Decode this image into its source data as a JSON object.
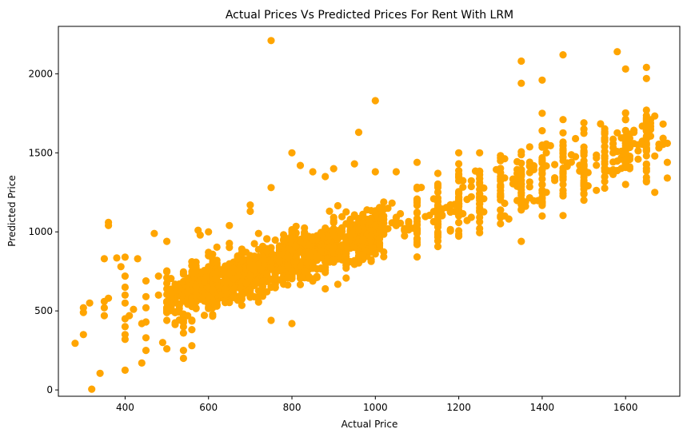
{
  "chart_data": {
    "type": "scatter",
    "title": "Actual Prices Vs Predicted Prices For Rent With LRM",
    "xlabel": "Actual Price",
    "ylabel": "Predicted Price",
    "xlim": [
      240,
      1730
    ],
    "ylim": [
      -40,
      2300
    ],
    "xticks": [
      400,
      600,
      800,
      1000,
      1200,
      1400,
      1600
    ],
    "yticks": [
      0,
      500,
      1000,
      1500,
      2000
    ],
    "grid": false,
    "legend": "none",
    "marker_color": "#FFA500",
    "series": [
      {
        "points": [
          [
            280,
            295
          ],
          [
            300,
            350
          ],
          [
            300,
            490
          ],
          [
            300,
            520
          ],
          [
            315,
            550
          ],
          [
            320,
            5
          ],
          [
            340,
            105
          ],
          [
            350,
            470
          ],
          [
            350,
            520
          ],
          [
            350,
            560
          ],
          [
            350,
            830
          ],
          [
            360,
            580
          ],
          [
            360,
            1040
          ],
          [
            360,
            1060
          ],
          [
            380,
            835
          ],
          [
            390,
            780
          ],
          [
            400,
            125
          ],
          [
            400,
            320
          ],
          [
            400,
            350
          ],
          [
            400,
            400
          ],
          [
            400,
            450
          ],
          [
            400,
            550
          ],
          [
            400,
            600
          ],
          [
            400,
            650
          ],
          [
            400,
            720
          ],
          [
            400,
            840
          ],
          [
            410,
            470
          ],
          [
            420,
            510
          ],
          [
            430,
            830
          ],
          [
            440,
            170
          ],
          [
            440,
            420
          ],
          [
            450,
            250
          ],
          [
            450,
            330
          ],
          [
            450,
            430
          ],
          [
            450,
            520
          ],
          [
            450,
            590
          ],
          [
            450,
            690
          ],
          [
            470,
            990
          ],
          [
            480,
            600
          ],
          [
            480,
            720
          ],
          [
            490,
            300
          ],
          [
            500,
            260
          ],
          [
            500,
            640
          ],
          [
            500,
            710
          ],
          [
            500,
            940
          ],
          [
            500,
            560
          ],
          [
            500,
            520
          ],
          [
            520,
            650
          ],
          [
            540,
            200
          ],
          [
            540,
            250
          ],
          [
            540,
            360
          ],
          [
            540,
            480
          ],
          [
            550,
            470
          ],
          [
            550,
            620
          ],
          [
            550,
            700
          ],
          [
            560,
            280
          ],
          [
            560,
            560
          ],
          [
            575,
            1010
          ],
          [
            580,
            980
          ],
          [
            600,
            760
          ],
          [
            600,
            590
          ],
          [
            600,
            870
          ],
          [
            600,
            1000
          ],
          [
            620,
            820
          ],
          [
            640,
            680
          ],
          [
            650,
            1040
          ],
          [
            700,
            720
          ],
          [
            700,
            850
          ],
          [
            700,
            1130
          ],
          [
            700,
            1170
          ],
          [
            750,
            2210
          ],
          [
            750,
            1280
          ],
          [
            750,
            440
          ],
          [
            750,
            650
          ],
          [
            750,
            900
          ],
          [
            800,
            1500
          ],
          [
            800,
            420
          ],
          [
            800,
            750
          ],
          [
            800,
            1000
          ],
          [
            820,
            1420
          ],
          [
            850,
            1380
          ],
          [
            850,
            950
          ],
          [
            880,
            1350
          ],
          [
            880,
            640
          ],
          [
            900,
            1400
          ],
          [
            900,
            1020
          ],
          [
            950,
            1430
          ],
          [
            950,
            1100
          ],
          [
            960,
            1630
          ],
          [
            1000,
            1830
          ],
          [
            1000,
            1380
          ],
          [
            1000,
            1040
          ],
          [
            1000,
            860
          ],
          [
            1050,
            1380
          ],
          [
            1050,
            1050
          ],
          [
            1100,
            1440
          ],
          [
            1100,
            1200
          ],
          [
            1150,
            1370
          ],
          [
            1150,
            1100
          ],
          [
            1200,
            1500
          ],
          [
            1200,
            1220
          ],
          [
            1250,
            1500
          ],
          [
            1250,
            1300
          ],
          [
            1300,
            1450
          ],
          [
            1300,
            1100
          ],
          [
            1350,
            2080
          ],
          [
            1350,
            1940
          ],
          [
            1350,
            940
          ],
          [
            1350,
            1300
          ],
          [
            1400,
            1960
          ],
          [
            1400,
            1750
          ],
          [
            1400,
            1640
          ],
          [
            1400,
            1300
          ],
          [
            1400,
            1100
          ],
          [
            1450,
            2120
          ],
          [
            1450,
            1710
          ],
          [
            1450,
            1500
          ],
          [
            1450,
            1300
          ],
          [
            1500,
            1690
          ],
          [
            1500,
            1400
          ],
          [
            1500,
            1200
          ],
          [
            1550,
            1620
          ],
          [
            1550,
            1350
          ],
          [
            1580,
            2140
          ],
          [
            1600,
            2030
          ],
          [
            1600,
            1750
          ],
          [
            1600,
            1500
          ],
          [
            1600,
            1300
          ],
          [
            1650,
            2040
          ],
          [
            1650,
            1970
          ],
          [
            1650,
            1770
          ],
          [
            1650,
            1550
          ],
          [
            1650,
            1400
          ],
          [
            1670,
            1250
          ],
          [
            1700,
            1560
          ],
          [
            1700,
            1440
          ],
          [
            1700,
            1340
          ]
        ]
      }
    ]
  }
}
